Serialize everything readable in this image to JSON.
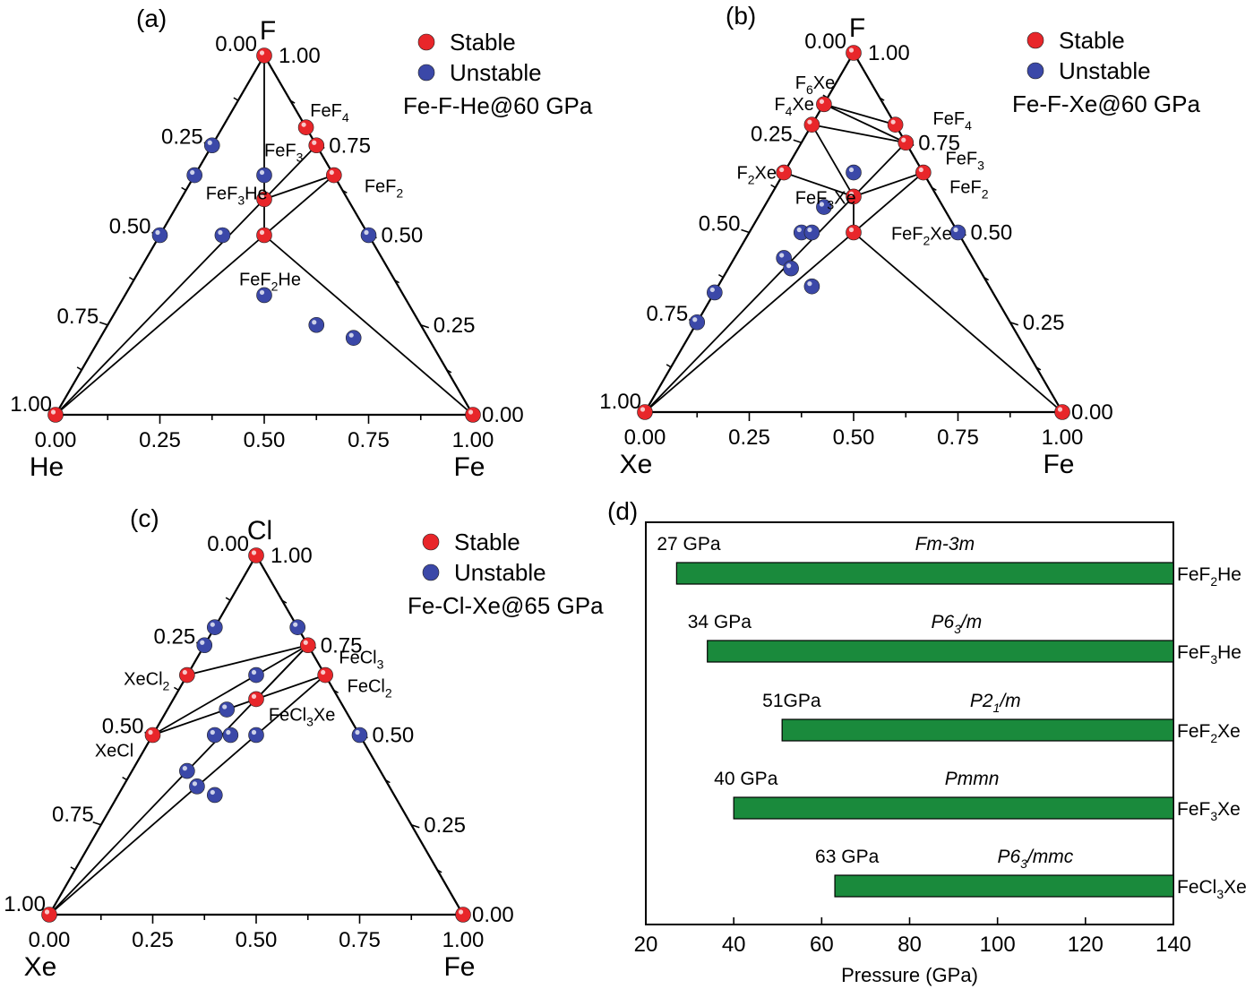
{
  "stable_color": "#e8262a",
  "unstable_color": "#3b48a8",
  "bar_color": "#1a8a3c",
  "ternaries": [
    {
      "panel_label": "(a)",
      "vertices": {
        "top": "F",
        "left": "He",
        "right": "Fe"
      },
      "legend": {
        "stable": "Stable",
        "unstable": "Unstable",
        "system": "Fe-F-He@60 GPa"
      },
      "corner_labels": {
        "top_left": "0.00",
        "top_right": "1.00",
        "left": "1.00",
        "right": "0.00"
      },
      "bottom_ticks": [
        "0.00",
        "0.25",
        "0.50",
        "0.75",
        "1.00"
      ],
      "left_ticks": [
        "0.25",
        "0.50",
        "0.75"
      ],
      "right_ticks": [
        "0.75",
        "0.50",
        "0.25"
      ],
      "stable": [
        [
          0.5,
          1
        ],
        [
          0,
          0
        ],
        [
          1,
          0
        ],
        [
          0.6,
          0.8
        ],
        [
          0.625,
          0.75
        ],
        [
          0.667,
          0.667
        ],
        [
          0.5,
          0.6
        ],
        [
          0.5,
          0.5
        ]
      ],
      "unstable": [
        [
          0.375,
          0.75
        ],
        [
          0.333,
          0.667
        ],
        [
          0.5,
          0.667
        ],
        [
          0.25,
          0.5
        ],
        [
          0.4,
          0.5
        ],
        [
          0.75,
          0.5
        ],
        [
          0.5,
          0.333
        ],
        [
          0.625,
          0.25
        ],
        [
          0.714,
          0.214
        ]
      ],
      "tie_lines": [
        [
          [
            0.5,
            1
          ],
          [
            0.5,
            0.6
          ]
        ],
        [
          [
            0.5,
            1
          ],
          [
            0,
            0
          ]
        ],
        [
          [
            0.5,
            1
          ],
          [
            1,
            0
          ]
        ],
        [
          [
            0,
            0
          ],
          [
            0.5,
            0.6
          ]
        ],
        [
          [
            0,
            0
          ],
          [
            0.5,
            0.5
          ]
        ],
        [
          [
            0,
            0
          ],
          [
            1,
            0
          ]
        ],
        [
          [
            0.5,
            0.6
          ],
          [
            0.625,
            0.75
          ]
        ],
        [
          [
            0.5,
            0.6
          ],
          [
            0.667,
            0.667
          ]
        ],
        [
          [
            0.5,
            0.5
          ],
          [
            0.667,
            0.667
          ]
        ],
        [
          [
            0.5,
            0.5
          ],
          [
            1,
            0
          ]
        ],
        [
          [
            0.5,
            0.5
          ],
          [
            0.5,
            0.6
          ]
        ]
      ],
      "labels": [
        {
          "text": "FeF",
          "sub": "4",
          "at": [
            0.61,
            0.83
          ]
        },
        {
          "text": "FeF",
          "sub": "3",
          "at": [
            0.5,
            0.72
          ]
        },
        {
          "text": "FeF",
          "sub": "2",
          "at": [
            0.74,
            0.62
          ]
        },
        {
          "text": "FeF",
          "sub": "3",
          "tail": "He",
          "at": [
            0.36,
            0.6
          ]
        },
        {
          "text": "FeF",
          "sub": "2",
          "tail": "He",
          "at": [
            0.44,
            0.36
          ]
        }
      ]
    },
    {
      "panel_label": "(b)",
      "vertices": {
        "top": "F",
        "left": "Xe",
        "right": "Fe"
      },
      "legend": {
        "stable": "Stable",
        "unstable": "Unstable",
        "system": "Fe-F-Xe@60 GPa"
      },
      "corner_labels": {
        "top_left": "0.00",
        "top_right": "1.00",
        "left": "1.00",
        "right": "0.00"
      },
      "bottom_ticks": [
        "0.00",
        "0.25",
        "0.50",
        "0.75",
        "1.00"
      ],
      "left_ticks": [
        "0.25",
        "0.50",
        "0.75"
      ],
      "right_ticks": [
        "0.75",
        "0.50",
        "0.25"
      ],
      "stable": [
        [
          0.5,
          1
        ],
        [
          0,
          0
        ],
        [
          1,
          0
        ],
        [
          0.429,
          0.857
        ],
        [
          0.4,
          0.8
        ],
        [
          0.333,
          0.667
        ],
        [
          0.6,
          0.8
        ],
        [
          0.625,
          0.75
        ],
        [
          0.667,
          0.667
        ],
        [
          0.5,
          0.6
        ],
        [
          0.5,
          0.5
        ]
      ],
      "unstable": [
        [
          0.5,
          0.667
        ],
        [
          0.429,
          0.571
        ],
        [
          0.375,
          0.5
        ],
        [
          0.4,
          0.5
        ],
        [
          0.333,
          0.429
        ],
        [
          0.35,
          0.4
        ],
        [
          0.4,
          0.35
        ],
        [
          0.75,
          0.5
        ],
        [
          0.167,
          0.333
        ],
        [
          0.125,
          0.25
        ]
      ],
      "tie_lines": [
        [
          [
            0.5,
            1
          ],
          [
            0,
            0
          ]
        ],
        [
          [
            0.5,
            1
          ],
          [
            1,
            0
          ]
        ],
        [
          [
            0,
            0
          ],
          [
            1,
            0
          ]
        ],
        [
          [
            0.429,
            0.857
          ],
          [
            0.6,
            0.8
          ]
        ],
        [
          [
            0.429,
            0.857
          ],
          [
            0.625,
            0.75
          ]
        ],
        [
          [
            0.4,
            0.8
          ],
          [
            0.625,
            0.75
          ]
        ],
        [
          [
            0.4,
            0.8
          ],
          [
            0.5,
            0.6
          ]
        ],
        [
          [
            0.333,
            0.667
          ],
          [
            0.5,
            0.6
          ]
        ],
        [
          [
            0.5,
            0.6
          ],
          [
            0.625,
            0.75
          ]
        ],
        [
          [
            0.5,
            0.6
          ],
          [
            0.667,
            0.667
          ]
        ],
        [
          [
            0.5,
            0.6
          ],
          [
            0.5,
            0.5
          ]
        ],
        [
          [
            0.5,
            0.5
          ],
          [
            0.667,
            0.667
          ]
        ],
        [
          [
            0.5,
            0.5
          ],
          [
            1,
            0
          ]
        ],
        [
          [
            0,
            0
          ],
          [
            0.5,
            0.6
          ]
        ],
        [
          [
            0,
            0
          ],
          [
            0.5,
            0.5
          ]
        ]
      ],
      "labels": [
        {
          "text": "F",
          "sub": "6",
          "tail": "Xe",
          "at": [
            0.36,
            0.9
          ]
        },
        {
          "text": "F",
          "sub": "4",
          "tail": "Xe",
          "at": [
            0.31,
            0.84
          ]
        },
        {
          "text": "FeF",
          "sub": "4",
          "at": [
            0.69,
            0.8
          ]
        },
        {
          "text": "FeF",
          "sub": "3",
          "at": [
            0.72,
            0.69
          ]
        },
        {
          "text": "FeF",
          "sub": "2",
          "at": [
            0.73,
            0.61
          ]
        },
        {
          "text": "F",
          "sub": "2",
          "tail": "Xe",
          "at": [
            0.22,
            0.65
          ]
        },
        {
          "text": "FeF",
          "sub": "3",
          "tail": "Xe",
          "at": [
            0.36,
            0.58
          ]
        },
        {
          "text": "FeF",
          "sub": "2",
          "tail": "Xe",
          "at": [
            0.59,
            0.48
          ]
        }
      ]
    },
    {
      "panel_label": "(c)",
      "vertices": {
        "top": "Cl",
        "left": "Xe",
        "right": "Fe"
      },
      "legend": {
        "stable": "Stable",
        "unstable": "Unstable",
        "system": "Fe-Cl-Xe@65 GPa"
      },
      "corner_labels": {
        "top_left": "0.00",
        "top_right": "1.00",
        "left": "1.00",
        "right": "0.00"
      },
      "bottom_ticks": [
        "0.00",
        "0.25",
        "0.50",
        "0.75",
        "1.00"
      ],
      "left_ticks": [
        "0.25",
        "0.50"
      ],
      "left_ticks_extra": "0.75",
      "right_ticks": [
        "0.75",
        "0.50",
        "0.25"
      ],
      "stable": [
        [
          0.5,
          1
        ],
        [
          0,
          0
        ],
        [
          1,
          0
        ],
        [
          0.625,
          0.75
        ],
        [
          0.667,
          0.667
        ],
        [
          0.333,
          0.667
        ],
        [
          0.25,
          0.5
        ],
        [
          0.5,
          0.6
        ]
      ],
      "unstable": [
        [
          0.4,
          0.8
        ],
        [
          0.375,
          0.75
        ],
        [
          0.6,
          0.8
        ],
        [
          0.5,
          0.667
        ],
        [
          0.429,
          0.571
        ],
        [
          0.4,
          0.5
        ],
        [
          0.438,
          0.5
        ],
        [
          0.5,
          0.5
        ],
        [
          0.75,
          0.5
        ],
        [
          0.333,
          0.4
        ],
        [
          0.357,
          0.357
        ],
        [
          0.4,
          0.333
        ]
      ],
      "tie_lines": [
        [
          [
            0.5,
            1
          ],
          [
            0,
            0
          ]
        ],
        [
          [
            0.5,
            1
          ],
          [
            1,
            0
          ]
        ],
        [
          [
            0,
            0
          ],
          [
            1,
            0
          ]
        ],
        [
          [
            0.333,
            0.667
          ],
          [
            0.625,
            0.75
          ]
        ],
        [
          [
            0.25,
            0.5
          ],
          [
            0.625,
            0.75
          ]
        ],
        [
          [
            0.25,
            0.5
          ],
          [
            0.5,
            0.6
          ]
        ],
        [
          [
            0.5,
            0.6
          ],
          [
            0.625,
            0.75
          ]
        ],
        [
          [
            0.5,
            0.6
          ],
          [
            0.667,
            0.667
          ]
        ],
        [
          [
            0,
            0
          ],
          [
            0.625,
            0.75
          ]
        ],
        [
          [
            0,
            0
          ],
          [
            0.667,
            0.667
          ]
        ]
      ],
      "labels": [
        {
          "text": "FeCl",
          "sub": "3",
          "at": [
            0.7,
            0.7
          ]
        },
        {
          "text": "FeCl",
          "sub": "2",
          "at": [
            0.72,
            0.62
          ]
        },
        {
          "text": "XeCl",
          "sub": "2",
          "at": [
            0.18,
            0.64
          ]
        },
        {
          "text": "FeCl",
          "sub": "3",
          "tail": "Xe",
          "at": [
            0.53,
            0.54
          ]
        },
        {
          "text": "XeCl",
          "at": [
            0.11,
            0.44
          ]
        }
      ]
    }
  ],
  "chart_data": {
    "type": "bar",
    "panel_label": "(d)",
    "xlabel": "Pressure (GPa)",
    "xlim": [
      20,
      140
    ],
    "x_ticks": [
      "20",
      "40",
      "60",
      "80",
      "100",
      "120",
      "140"
    ],
    "bars": [
      {
        "compound": "FeF",
        "sub": "2",
        "tail": "He",
        "start": 27,
        "end": 140,
        "start_label": "27 GPa",
        "phase": "Fm-3m"
      },
      {
        "compound": "FeF",
        "sub": "3",
        "tail": "He",
        "start": 34,
        "end": 140,
        "start_label": "34 GPa",
        "phase": "P6",
        "phase_sub": "3",
        "phase_tail": "/m"
      },
      {
        "compound": "FeF",
        "sub": "2",
        "tail": "Xe",
        "start": 51,
        "end": 140,
        "start_label": "51GPa",
        "phase": "P2",
        "phase_sub": "1",
        "phase_tail": "/m"
      },
      {
        "compound": "FeF",
        "sub": "3",
        "tail": "Xe",
        "start": 40,
        "end": 140,
        "start_label": "40 GPa",
        "phase": "Pmmn"
      },
      {
        "compound": "FeCl",
        "sub": "3",
        "tail": "Xe",
        "start": 63,
        "end": 140,
        "start_label": "63 GPa",
        "phase": "P6",
        "phase_sub": "3",
        "phase_tail": "/mmc"
      }
    ]
  }
}
